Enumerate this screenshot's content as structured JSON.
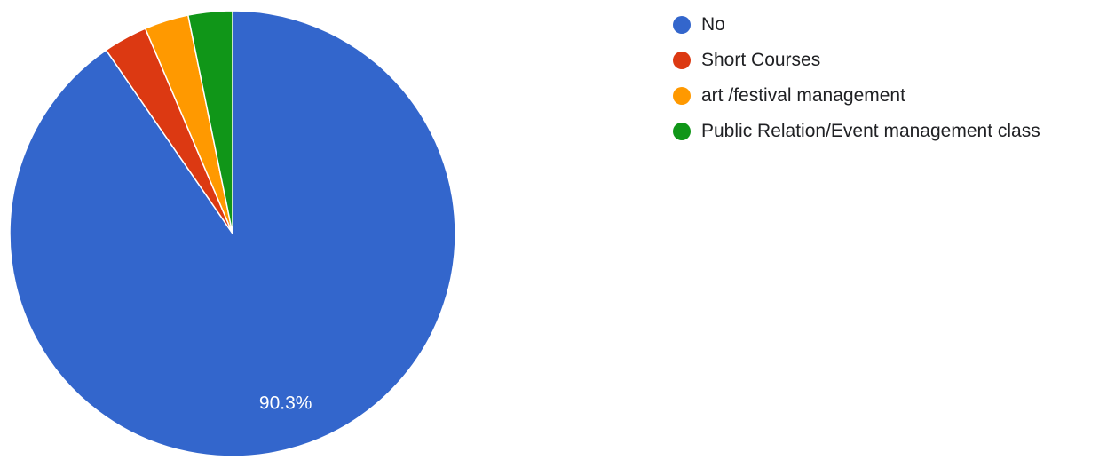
{
  "chart_data": {
    "type": "pie",
    "categories": [
      "No",
      "Short Courses",
      "art /festival management",
      "Public Relation/Event management class"
    ],
    "values": [
      90.3,
      3.2,
      3.2,
      3.2
    ],
    "colors": [
      "#3366cc",
      "#dc3912",
      "#ff9900",
      "#109618"
    ],
    "data_labels": [
      "90.3%",
      "",
      "",
      ""
    ],
    "legend_position": "right"
  }
}
